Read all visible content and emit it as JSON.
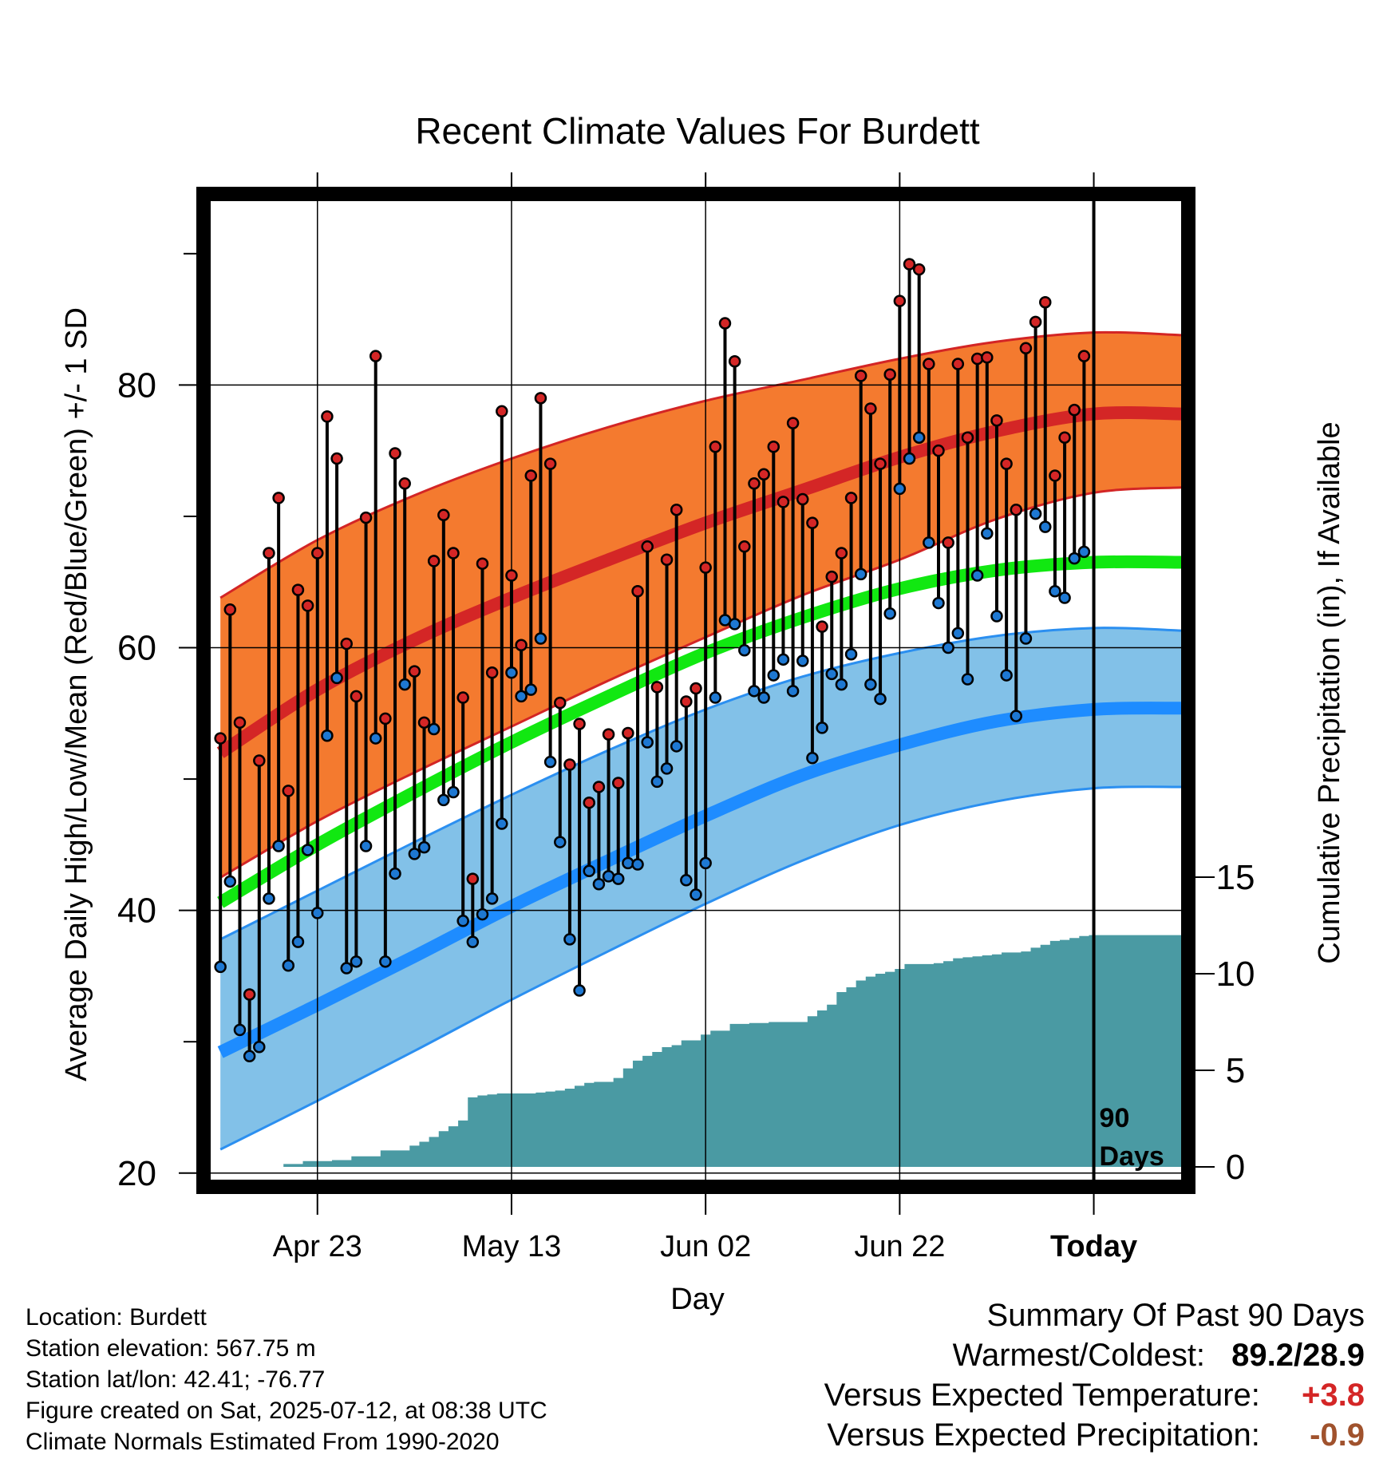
{
  "title": "Recent Climate Values For Burdett",
  "axes": {
    "x_label": "Day",
    "y_label": "Average Daily High/Low/Mean (Red/Blue/Green) +/- 1 SD",
    "y2_label": "Cumulative Precipitation (in), If Available",
    "today_marker": {
      "line1": "90",
      "line2": "Days"
    }
  },
  "metadata": {
    "location": "Location: Burdett",
    "elevation": "Station elevation: 567.75 m",
    "latlon": "Station lat/lon: 42.41; -76.77",
    "created": "Figure created on Sat, 2025-07-12, at 08:38 UTC",
    "normals": "Climate Normals Estimated From 1990-2020"
  },
  "summary": {
    "heading": "Summary Of Past 90 Days",
    "warmest_coldest_label": "Warmest/Coldest:",
    "warmest_coldest_value": "89.2/28.9",
    "temp_label": "Versus Expected Temperature:",
    "temp_value": "+3.8",
    "precip_label": "Versus Expected Precipitation:",
    "precip_value": "-0.9"
  },
  "colors": {
    "high_band": "#f47a2f",
    "high_band_edge": "#d32525",
    "high_mean": "#d42626",
    "low_band": "#82c1e8",
    "low_band_edge": "#2b8ff0",
    "low_mean": "#1e8cff",
    "mean": "#11e811",
    "precip": "#4a9aa3",
    "high_dot": "#d42626",
    "low_dot": "#1e78d2",
    "temp_anomaly": "#d42626",
    "precip_anomaly": "#a0522d"
  },
  "chart_data": {
    "type": "line",
    "title": "Recent Climate Values For Burdett",
    "xlabel": "Day",
    "ylabel": "Average Daily High/Low/Mean (Red/Blue/Green) +/- 1 SD",
    "y2label": "Cumulative Precipitation (in), If Available",
    "xlim": [
      "2025-04-12",
      "2025-07-21"
    ],
    "ylim": [
      19.5,
      94
    ],
    "y2lim": [
      0,
      15
    ],
    "x_ticks": [
      {
        "date": "2025-04-23",
        "label": "Apr 23"
      },
      {
        "date": "2025-05-13",
        "label": "May 13"
      },
      {
        "date": "2025-06-02",
        "label": "Jun 02"
      },
      {
        "date": "2025-06-22",
        "label": "Jun 22"
      },
      {
        "date": "2025-07-12",
        "label": "Today"
      }
    ],
    "y_ticks": [
      20,
      40,
      60,
      80
    ],
    "y2_ticks": [
      0,
      5,
      10,
      15
    ],
    "today": "2025-07-12",
    "grid": true,
    "daily_observations": {
      "start_date": "2025-04-13",
      "high": [
        53.1,
        62.9,
        54.3,
        33.6,
        51.4,
        67.2,
        71.4,
        49.1,
        64.4,
        63.2,
        67.2,
        77.6,
        74.4,
        60.3,
        56.3,
        69.9,
        82.2,
        54.6,
        74.8,
        72.5,
        58.2,
        54.3,
        66.6,
        70.1,
        67.2,
        56.2,
        42.4,
        66.4,
        58.1,
        78.0,
        65.5,
        60.2,
        73.1,
        79.0,
        74.0,
        55.8,
        51.1,
        54.2,
        48.2,
        49.4,
        53.4,
        49.7,
        53.5,
        64.3,
        67.7,
        57.0,
        66.7,
        70.5,
        55.9,
        56.9,
        66.1,
        75.3,
        84.7,
        81.8,
        67.7,
        72.5,
        73.2,
        75.3,
        71.1,
        77.1,
        71.3,
        69.5,
        61.6,
        65.4,
        67.2,
        71.4,
        80.7,
        78.2,
        74.0,
        80.8,
        86.4,
        89.2,
        88.8,
        81.6,
        75.0,
        68.0,
        81.6,
        76.0,
        82.0,
        82.1,
        77.3,
        74.0,
        70.5,
        82.8,
        84.8,
        86.3,
        73.1,
        76.0,
        78.1,
        82.2
      ],
      "low": [
        35.7,
        42.2,
        30.9,
        28.9,
        29.6,
        40.9,
        44.9,
        35.8,
        37.6,
        44.6,
        39.8,
        53.3,
        57.7,
        35.6,
        36.1,
        44.9,
        53.1,
        36.1,
        42.8,
        57.2,
        44.3,
        44.8,
        53.8,
        48.4,
        49.0,
        39.2,
        37.6,
        39.7,
        40.9,
        46.6,
        58.1,
        56.3,
        56.8,
        60.7,
        51.3,
        45.2,
        37.8,
        33.9,
        43.0,
        42.0,
        42.6,
        42.4,
        43.6,
        43.5,
        52.8,
        49.8,
        50.8,
        52.5,
        42.3,
        41.2,
        43.6,
        56.2,
        62.1,
        61.8,
        59.8,
        56.7,
        56.2,
        57.9,
        59.1,
        56.7,
        59.0,
        51.6,
        53.9,
        58.0,
        57.2,
        59.5,
        65.6,
        57.2,
        56.1,
        62.6,
        72.1,
        74.4,
        76.0,
        68.0,
        63.4,
        60.0,
        61.1,
        57.6,
        65.5,
        68.7,
        62.4,
        57.9,
        54.8,
        60.7,
        70.2,
        69.2,
        64.3,
        63.8,
        66.8,
        67.3
      ]
    },
    "normals": {
      "dates": [
        "2025-04-13",
        "2025-04-23",
        "2025-05-03",
        "2025-05-13",
        "2025-05-23",
        "2025-06-02",
        "2025-06-12",
        "2025-06-22",
        "2025-07-02",
        "2025-07-12",
        "2025-07-21"
      ],
      "high_upper": [
        63.8,
        68.2,
        71.6,
        74.4,
        76.8,
        78.8,
        80.4,
        82.0,
        83.3,
        84.0,
        83.8
      ],
      "high_mean": [
        52.0,
        56.8,
        60.6,
        63.8,
        66.7,
        69.5,
        72.0,
        74.5,
        76.5,
        77.8,
        77.8
      ],
      "high_lower": [
        42.5,
        46.8,
        50.5,
        54.0,
        57.5,
        60.8,
        64.0,
        66.7,
        69.8,
        71.8,
        72.2
      ],
      "mean": [
        40.6,
        45.0,
        49.0,
        52.8,
        56.3,
        59.6,
        62.3,
        64.5,
        65.9,
        66.5,
        66.5
      ],
      "low_upper": [
        37.8,
        41.5,
        45.2,
        48.8,
        52.2,
        55.3,
        57.8,
        59.6,
        60.9,
        61.5,
        61.3
      ],
      "low_mean": [
        29.2,
        32.8,
        36.5,
        40.3,
        43.8,
        47.2,
        50.3,
        52.6,
        54.4,
        55.3,
        55.4
      ],
      "low_lower": [
        21.8,
        25.5,
        29.3,
        33.2,
        36.9,
        40.5,
        43.8,
        46.5,
        48.3,
        49.3,
        49.4
      ]
    },
    "cumulative_precipitation": {
      "start_date": "2025-04-13",
      "values": [
        0.0,
        0.0,
        0.0,
        0.0,
        0.0,
        0.0,
        0.0,
        0.15,
        0.15,
        0.3,
        0.3,
        0.3,
        0.35,
        0.35,
        0.55,
        0.55,
        0.55,
        0.85,
        0.85,
        0.85,
        1.1,
        1.3,
        1.55,
        1.85,
        2.1,
        2.4,
        3.6,
        3.7,
        3.75,
        3.8,
        3.8,
        3.8,
        3.8,
        3.85,
        3.9,
        3.95,
        4.05,
        4.2,
        4.35,
        4.4,
        4.4,
        4.6,
        5.1,
        5.5,
        5.75,
        5.95,
        6.2,
        6.3,
        6.55,
        6.55,
        6.85,
        7.05,
        7.05,
        7.4,
        7.4,
        7.45,
        7.45,
        7.5,
        7.5,
        7.5,
        7.5,
        7.8,
        8.1,
        8.4,
        9.05,
        9.3,
        9.65,
        9.85,
        10.0,
        10.1,
        10.25,
        10.5,
        10.5,
        10.5,
        10.55,
        10.65,
        10.8,
        10.85,
        10.9,
        10.95,
        11.0,
        11.1,
        11.1,
        11.15,
        11.35,
        11.5,
        11.7,
        11.75,
        11.85,
        11.95,
        12.0,
        12.0,
        12.0,
        12.0,
        12.0,
        12.0,
        12.0,
        12.0,
        12.0,
        12.0
      ]
    }
  }
}
